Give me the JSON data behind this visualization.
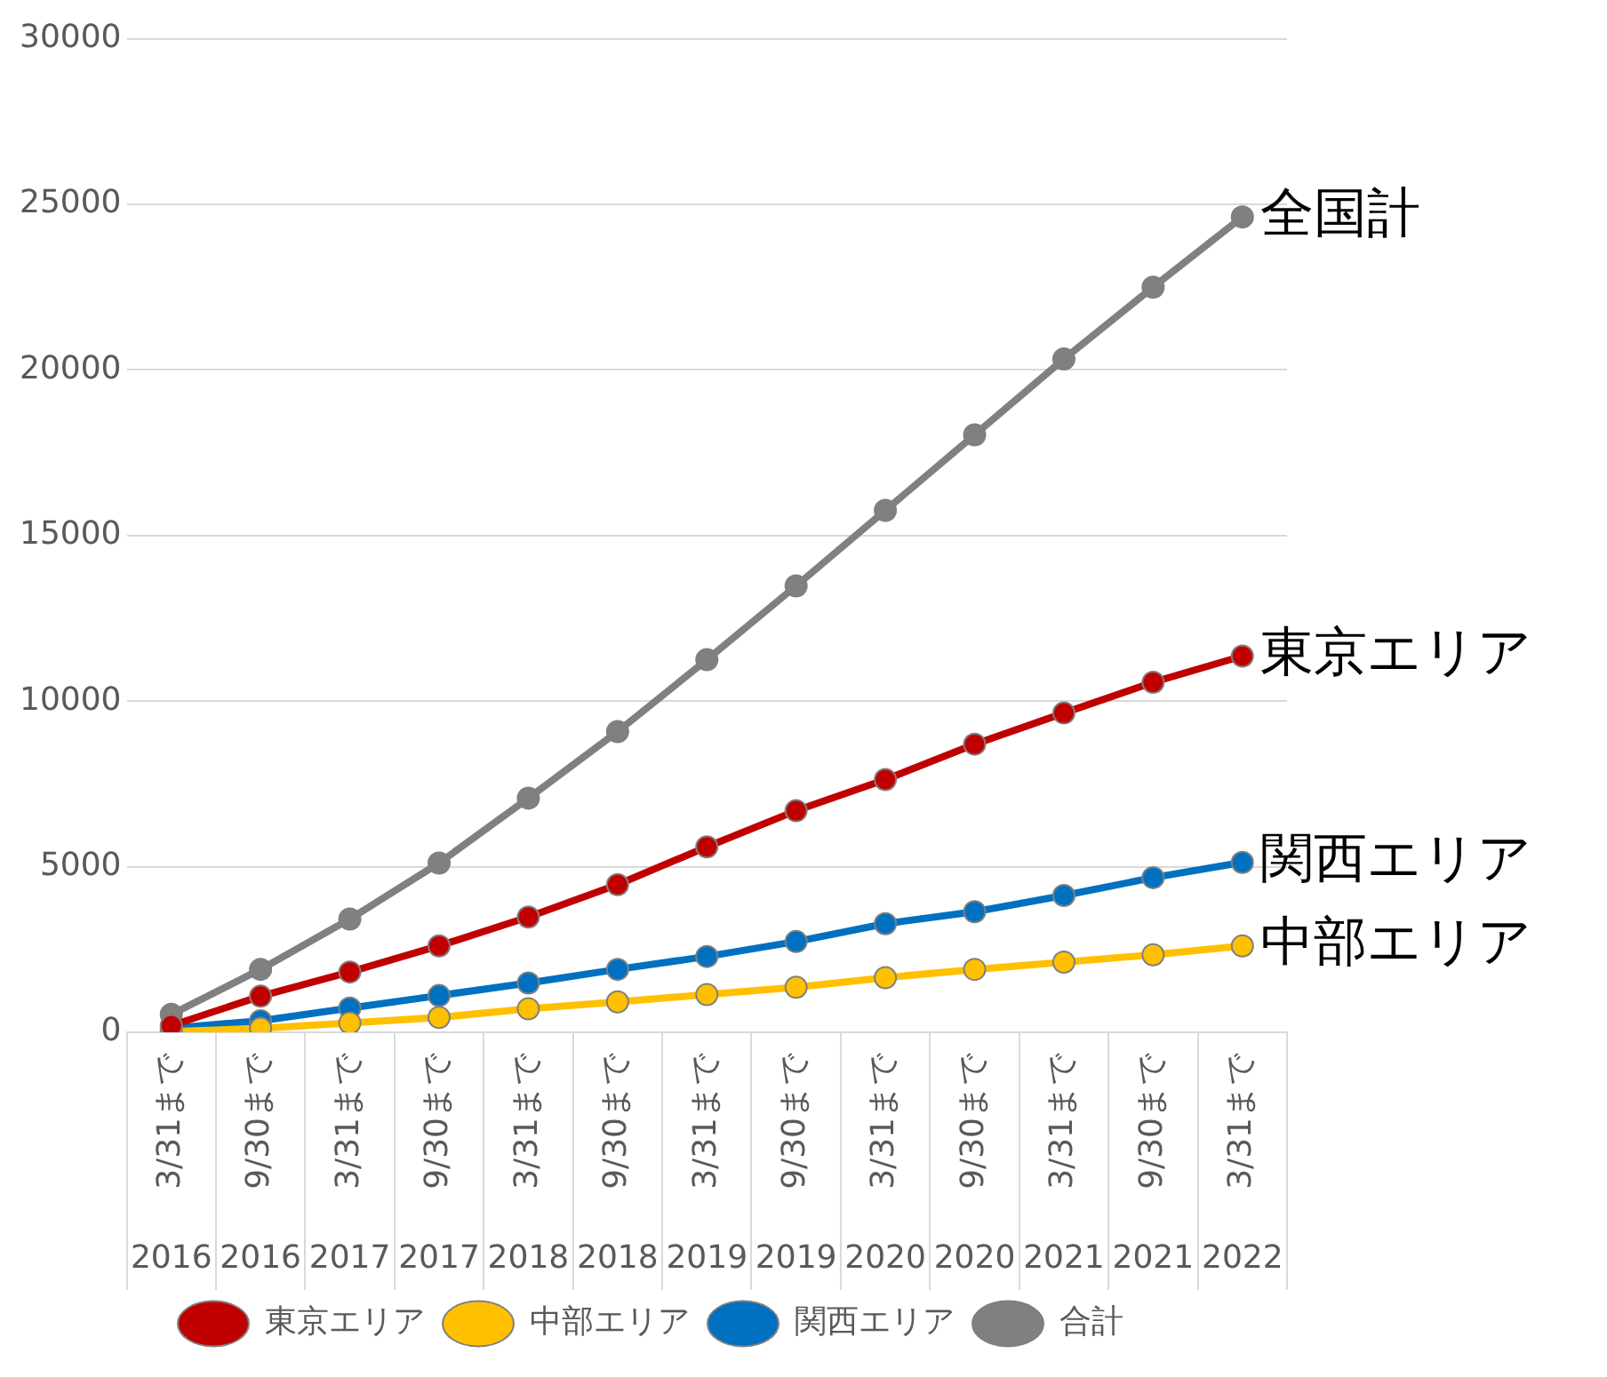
{
  "chart_data": {
    "type": "line",
    "categories": [
      "3/31まで 2016",
      "9/30まで 2016",
      "3/31まで 2017",
      "9/30まで 2017",
      "3/31まで 2018",
      "9/30まで 2018",
      "3/31まで 2019",
      "9/30まで 2019",
      "3/31まで 2020",
      "9/30まで 2020",
      "3/31まで 2021",
      "9/30まで 2021",
      "3/31まで 2022"
    ],
    "series": [
      {
        "name": "東京エリア",
        "color": "#c00000",
        "values": [
          200,
          1090,
          1820,
          2610,
          3480,
          4460,
          5600,
          6690,
          7630,
          8700,
          9640,
          10570,
          11360
        ]
      },
      {
        "name": "中部エリア",
        "color": "#ffc000",
        "values": [
          20,
          120,
          280,
          450,
          710,
          920,
          1140,
          1360,
          1650,
          1900,
          2120,
          2340,
          2610
        ]
      },
      {
        "name": "関西エリア",
        "color": "#0070c0",
        "values": [
          120,
          350,
          730,
          1110,
          1490,
          1900,
          2290,
          2740,
          3280,
          3640,
          4130,
          4670,
          5130
        ]
      },
      {
        "name": "合計",
        "color": "#808080",
        "values": [
          540,
          1900,
          3420,
          5110,
          7070,
          9080,
          11250,
          13480,
          15760,
          18040,
          20330,
          22500,
          24620
        ]
      }
    ],
    "ylim": [
      0,
      30000
    ],
    "yticks": [
      0,
      5000,
      10000,
      15000,
      20000,
      25000,
      30000
    ],
    "grid": "y",
    "legend": "bottom",
    "marker": "circle",
    "line_style": "solid",
    "annotations": [
      {
        "text": "全国計",
        "x": "3/31まで 2022",
        "y": 24620
      },
      {
        "text": "東京エリア",
        "x": "3/31まで 2022",
        "y": 11360
      },
      {
        "text": "関西エリア",
        "x": "3/31まで 2022",
        "y": 5130
      },
      {
        "text": "中部エリア",
        "x": "3/31まで 2022",
        "y": 2610
      }
    ]
  }
}
